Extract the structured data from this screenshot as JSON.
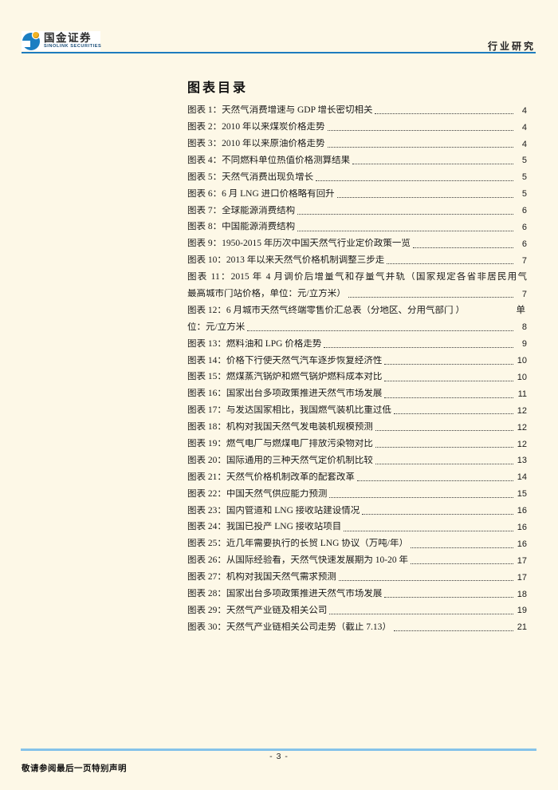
{
  "colors": {
    "page_bg": "#fdf8e7",
    "text": "#1a1a1a",
    "accent_blue": "#1e7cbe",
    "footer_rule": "#85c3e9",
    "logo_blue": "#1b7ec2",
    "logo_gold": "#f2b324"
  },
  "header": {
    "brand_cn": "国金证券",
    "brand_en": "SINOLINK SECURITIES",
    "category": "行业研究"
  },
  "toc": {
    "title": "图表目录",
    "rows": [
      {
        "text": "图表 1：天然气消费增速与 GDP 增长密切相关",
        "page": "4"
      },
      {
        "text": "图表 2：2010 年以来煤炭价格走势",
        "page": "4"
      },
      {
        "text": "图表 3：2010 年以来原油价格走势",
        "page": "4"
      },
      {
        "text": "图表 4：不同燃料单位热值价格测算结果",
        "page": "5"
      },
      {
        "text": "图表 5：天然气消费出现负增长",
        "page": "5"
      },
      {
        "text": "图表 6：6 月 LNG 进口价格略有回升",
        "page": "5"
      },
      {
        "text": "图表 7：全球能源消费结构",
        "page": "6"
      },
      {
        "text": "图表 8：中国能源消费结构",
        "page": "6"
      },
      {
        "text": "图表 9：1950-2015 年历次中国天然气行业定价政策一览",
        "page": "6"
      },
      {
        "text": "图表 10：2013 年以来天然气价格机制调整三步走",
        "page": "7"
      },
      {
        "text": "图表 11：2015 年 4 月调价后增量气和存量气并轨（国家规定各省非居民用气",
        "page": null,
        "justify": true
      },
      {
        "text": "最高城市门站价格，单位：元/立方米）",
        "page": "7"
      },
      {
        "text": "图表 12：6 月城市天然气终端零售价汇总表（分地区、分用气部门 ）",
        "tail": "单",
        "page": null
      },
      {
        "text": "位：元/立方米",
        "page": "8"
      },
      {
        "text": "图表 13：燃料油和 LPG 价格走势",
        "page": "9"
      },
      {
        "text": "图表 14：价格下行使天然气汽车逐步恢复经济性",
        "page": "10"
      },
      {
        "text": "图表 15：燃煤蒸汽锅炉和燃气锅炉燃料成本对比",
        "page": "10"
      },
      {
        "text": "图表 16：国家出台多项政策推进天然气市场发展",
        "page": "11"
      },
      {
        "text": "图表 17：与发达国家相比，我国燃气装机比重过低",
        "page": "12"
      },
      {
        "text": "图表 18：机构对我国天然气发电装机规模预测",
        "page": "12"
      },
      {
        "text": "图表 19：燃气电厂与燃煤电厂排放污染物对比",
        "page": "12"
      },
      {
        "text": "图表 20：国际通用的三种天然气定价机制比较",
        "page": "13"
      },
      {
        "text": "图表 21：天然气价格机制改革的配套改革",
        "page": "14"
      },
      {
        "text": "图表 22：中国天然气供应能力预测",
        "page": "15"
      },
      {
        "text": "图表 23：国内管道和 LNG 接收站建设情况",
        "page": "16"
      },
      {
        "text": "图表 24：我国已投产 LNG 接收站项目",
        "page": "16"
      },
      {
        "text": "图表 25：近几年需要执行的长贸 LNG 协议（万吨/年）",
        "page": "16"
      },
      {
        "text": "图表 26：从国际经验看，天然气快速发展期为 10-20 年",
        "page": "17"
      },
      {
        "text": "图表 27：机构对我国天然气需求预测",
        "page": "17"
      },
      {
        "text": "图表 28：国家出台多项政策推进天然气市场发展",
        "page": "18"
      },
      {
        "text": "图表 29：天然气产业链及相关公司",
        "page": "19"
      },
      {
        "text": "图表 30：天然气产业链相关公司走势（截止 7.13）",
        "page": "21"
      }
    ]
  },
  "footer": {
    "page_number": "- 3 -",
    "disclaimer": "敬请参阅最后一页特别声明"
  }
}
